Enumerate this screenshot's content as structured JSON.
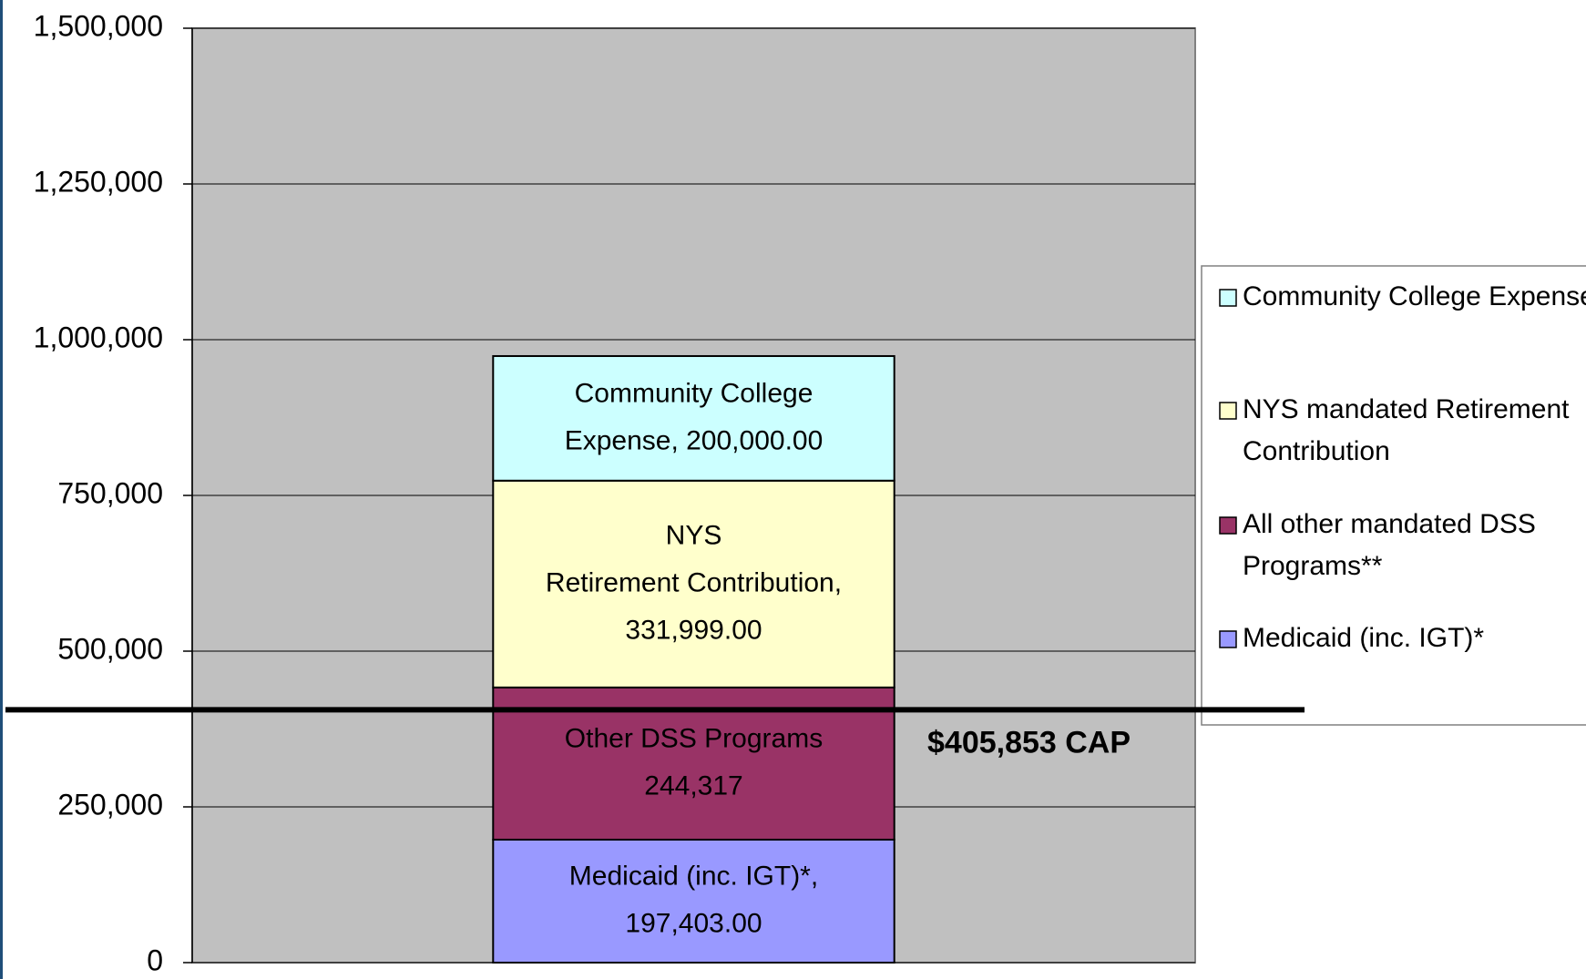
{
  "chart_data": {
    "type": "stacked_bar",
    "categories": [
      null
    ],
    "series": [
      {
        "name": "Medicaid (inc. IGT)*",
        "color": "#9999ff",
        "values": [
          197403
        ],
        "value_labels": [
          "Medicaid (inc. IGT)*,\n197,403.00"
        ]
      },
      {
        "name": "All other mandated DSS\nPrograms**",
        "color": "#993366",
        "values": [
          244317
        ],
        "value_labels": [
          "Other DSS Programs\n244,317"
        ]
      },
      {
        "name": "NYS mandated Retirement\nContribution",
        "color": "#ffffcc",
        "values": [
          331999
        ],
        "value_labels": [
          "NYS\nRetirement Contribution,\n331,999.00"
        ]
      },
      {
        "name": "Community College Expense",
        "color": "#ccffff",
        "values": [
          200000
        ],
        "value_labels": [
          "Community College\nExpense, 200,000.00"
        ]
      }
    ],
    "ylim": [
      0,
      1500000
    ],
    "yticks": [
      0,
      {
        "value": 250000,
        "label": "250,000"
      },
      {
        "value": 500000,
        "label": "500,000"
      },
      {
        "value": 750000,
        "label": "750,000"
      },
      {
        "value": 1000000,
        "label": "1,000,000"
      },
      {
        "value": 1250000,
        "label": "1,250,000"
      },
      {
        "value": 1500000,
        "label": "1,500,000"
      }
    ],
    "grid": true,
    "legend": "right",
    "annotations": [
      {
        "value": 405853,
        "label": "$405,853 CAP"
      }
    ]
  }
}
